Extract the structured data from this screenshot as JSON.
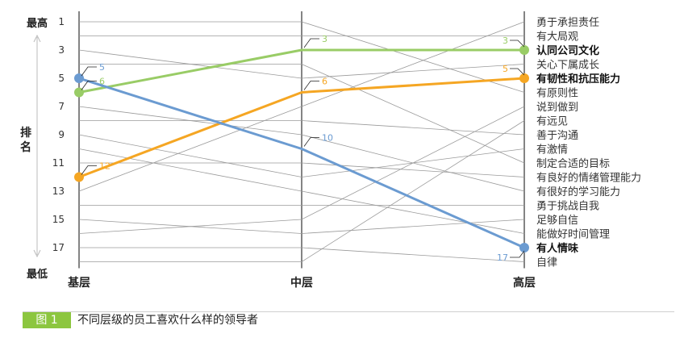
{
  "chart_data": {
    "type": "line",
    "title": "",
    "ylabel": "排名",
    "y_top_label": "最高",
    "y_bottom_label": "最低",
    "ylim": [
      1,
      18
    ],
    "y_ticks": [
      1,
      3,
      5,
      7,
      9,
      11,
      13,
      15,
      17
    ],
    "categories": [
      "基层",
      "中层",
      "高层"
    ],
    "traits": [
      {
        "name": "勇于承担责任",
        "ranks": [
          13,
          7,
          1
        ]
      },
      {
        "name": "有大局观",
        "ranks": [
          2,
          2,
          2
        ]
      },
      {
        "name": "认同公司文化",
        "ranks": [
          6,
          3,
          3
        ],
        "highlight": true,
        "color": "#99cc66",
        "labels": [
          "6",
          "3",
          "3"
        ]
      },
      {
        "name": "关心下属成长",
        "ranks": [
          3,
          5,
          4
        ]
      },
      {
        "name": "有韧性和抗压能力",
        "ranks": [
          12,
          6,
          5
        ],
        "highlight": true,
        "color": "#f5a623",
        "labels": [
          "12",
          "6",
          "5"
        ]
      },
      {
        "name": "有原则性",
        "ranks": [
          1,
          1,
          6
        ]
      },
      {
        "name": "说到做到",
        "ranks": [
          16,
          15,
          7
        ]
      },
      {
        "name": "有远见",
        "ranks": [
          18,
          18,
          8
        ]
      },
      {
        "name": "善于沟通",
        "ranks": [
          8,
          8,
          9
        ]
      },
      {
        "name": "有激情",
        "ranks": [
          9,
          12,
          10
        ]
      },
      {
        "name": "制定合适的目标",
        "ranks": [
          4,
          4,
          11
        ]
      },
      {
        "name": "有良好的情绪管理能力",
        "ranks": [
          11,
          11,
          12
        ]
      },
      {
        "name": "有很好的学习能力",
        "ranks": [
          7,
          9,
          13
        ]
      },
      {
        "name": "勇于挑战自我",
        "ranks": [
          14,
          14,
          14
        ]
      },
      {
        "name": "足够自信",
        "ranks": [
          15,
          16,
          15
        ]
      },
      {
        "name": "能做好时间管理",
        "ranks": [
          10,
          13,
          16
        ]
      },
      {
        "name": "有人情味",
        "ranks": [
          5,
          10,
          17
        ],
        "highlight": true,
        "color": "#6b9bd1",
        "labels": [
          "5",
          "10",
          "17"
        ]
      },
      {
        "name": "自律",
        "ranks": [
          17,
          17,
          18
        ]
      }
    ]
  },
  "caption": {
    "number": "图 1",
    "text": "不同层级的员工喜欢什么样的领导者"
  },
  "colors": {
    "grey_line": "#9a9a9a",
    "axis": "#333333",
    "caption_accent": "#8cc63f"
  }
}
